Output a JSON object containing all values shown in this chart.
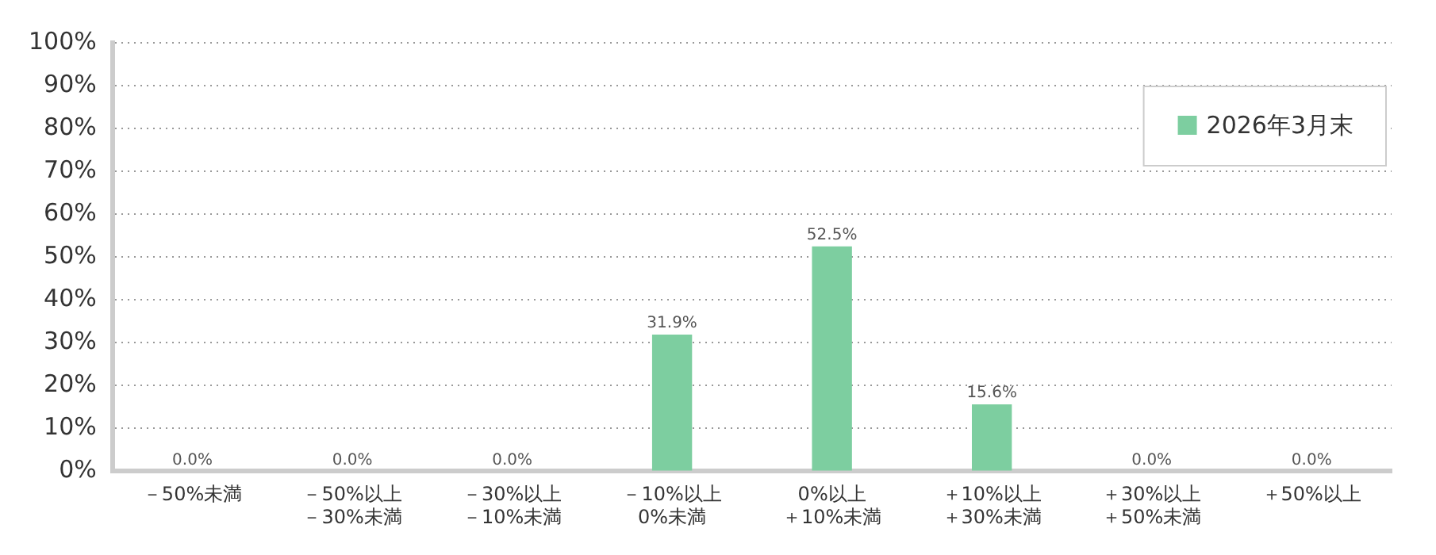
{
  "chart_data": {
    "type": "bar",
    "categories": [
      "－50%未満",
      "－50%以上－30%未満",
      "－30%以上－10%未満",
      "－10%以上0%未満",
      "0%以上＋10%未満",
      "＋10%以上＋30%未満",
      "＋30%以上＋50%未満",
      "＋50%以上"
    ],
    "series": [
      {
        "name": "2026年3月末",
        "color": "#7dcea0",
        "values": [
          0,
          0,
          0,
          31.9,
          52.5,
          15.6,
          0,
          0
        ],
        "value_labels": [
          "0.0%",
          "0.0%",
          "0.0%",
          "31.9%",
          "52.5%",
          "15.6%",
          "0.0%",
          "0.0%"
        ]
      }
    ],
    "ylim": [
      0,
      100
    ],
    "yticks": [
      {
        "value": 0,
        "label": "0%"
      },
      {
        "value": 10,
        "label": "10%"
      },
      {
        "value": 20,
        "label": "20%"
      },
      {
        "value": 30,
        "label": "30%"
      },
      {
        "value": 40,
        "label": "40%"
      },
      {
        "value": 50,
        "label": "50%"
      },
      {
        "value": 60,
        "label": "60%"
      },
      {
        "value": 70,
        "label": "70%"
      },
      {
        "value": 80,
        "label": "80%"
      },
      {
        "value": 90,
        "label": "90%"
      },
      {
        "value": 100,
        "label": "100%"
      }
    ],
    "grid": "y",
    "legend": "top right"
  }
}
